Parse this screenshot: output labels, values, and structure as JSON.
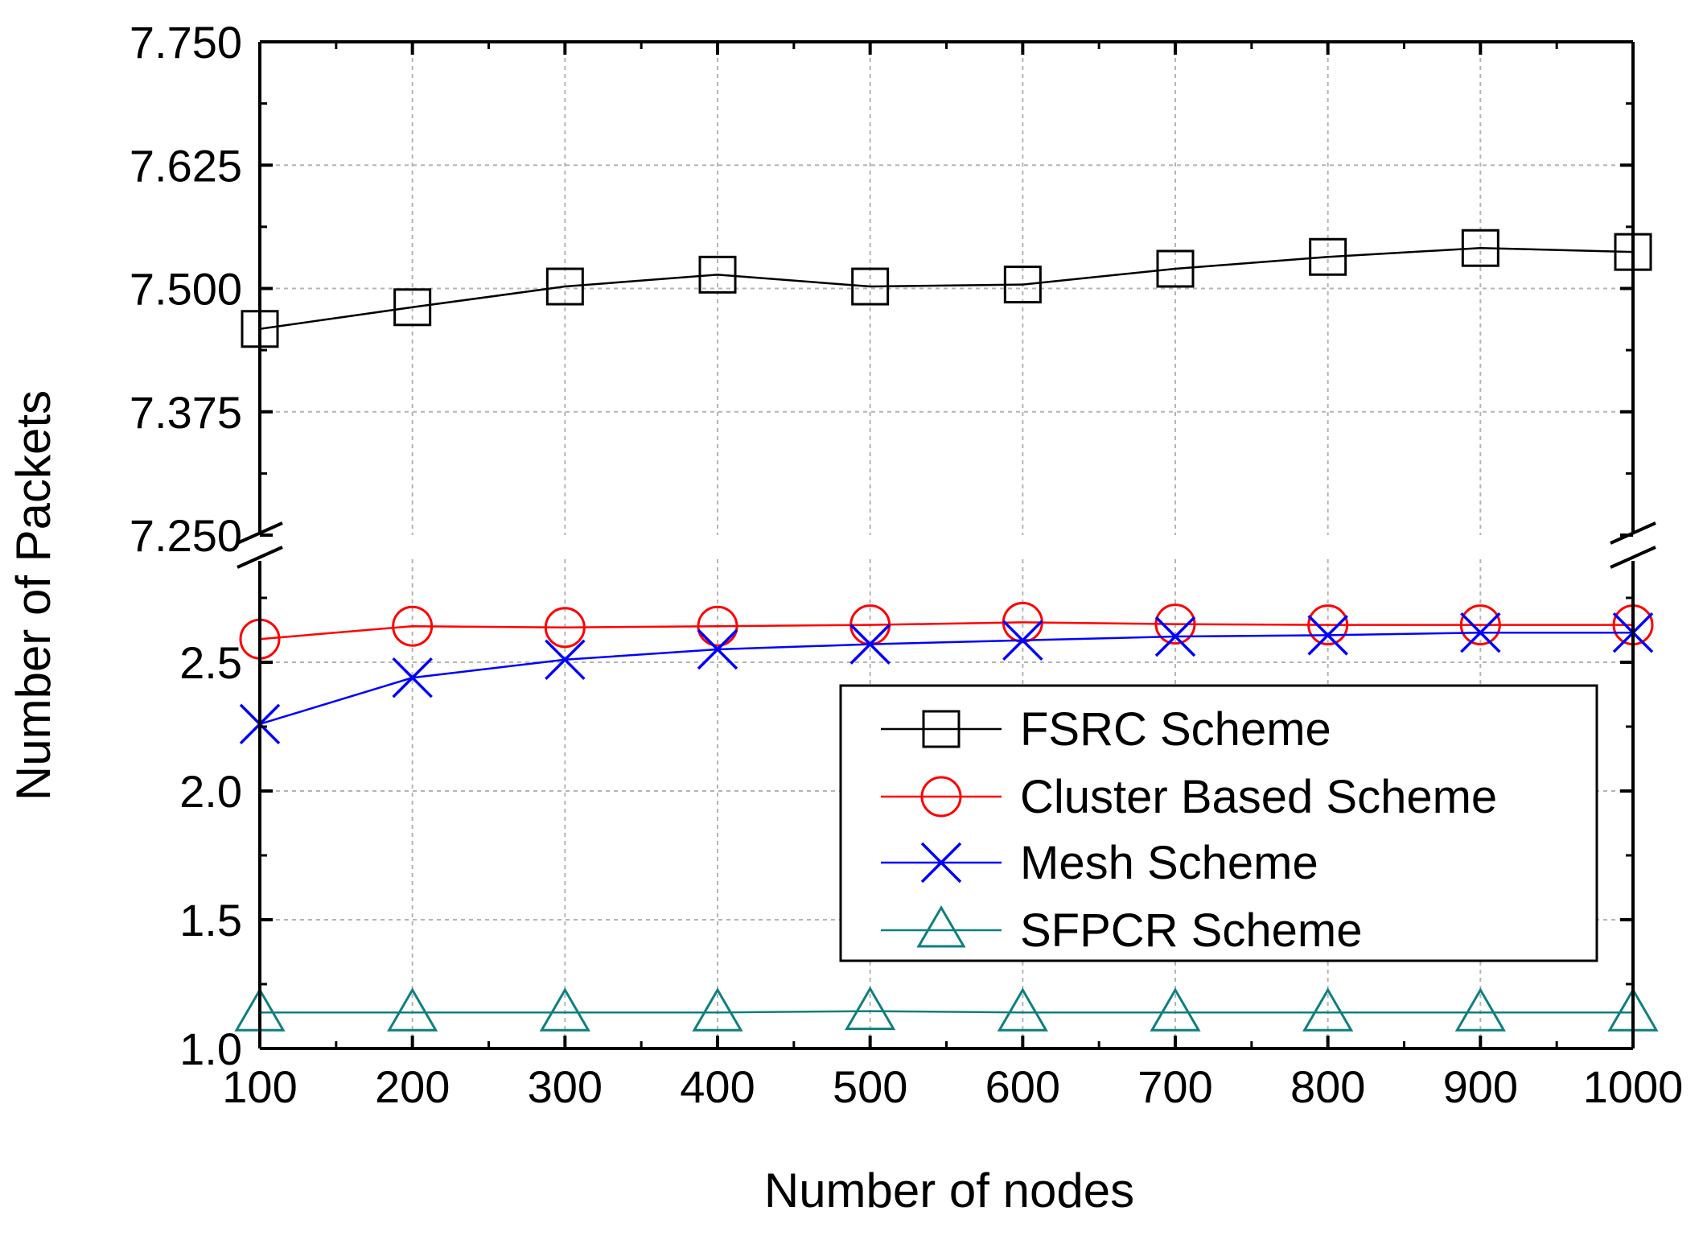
{
  "chart_data": {
    "type": "line",
    "xlabel": "Number of nodes",
    "ylabel": "Number of Packets",
    "x": [
      100,
      200,
      300,
      400,
      500,
      600,
      700,
      800,
      900,
      1000
    ],
    "xlim": [
      100,
      1000
    ],
    "xticks": [
      "100",
      "200",
      "300",
      "400",
      "500",
      "600",
      "700",
      "800",
      "900",
      "1000"
    ],
    "grid": true,
    "broken_y_axis": true,
    "y_upper": {
      "ylim": [
        7.25,
        7.75
      ],
      "ticks": [
        7.25,
        7.375,
        7.5,
        7.625,
        7.75
      ],
      "tick_labels": [
        "7.250",
        "7.375",
        "7.500",
        "7.625",
        "7.750"
      ]
    },
    "y_lower": {
      "ylim": [
        1.0,
        2.9
      ],
      "ticks": [
        1.0,
        1.5,
        2.0,
        2.5
      ],
      "tick_labels": [
        "1.0",
        "1.5",
        "2.0",
        "2.5"
      ]
    },
    "series": [
      {
        "name": "FSRC Scheme",
        "color": "#000000",
        "marker": "square",
        "segment": "upper",
        "values": [
          7.459,
          7.481,
          7.502,
          7.514,
          7.502,
          7.504,
          7.52,
          7.532,
          7.541,
          7.537
        ]
      },
      {
        "name": "Cluster Based Scheme",
        "color": "#ff0000",
        "marker": "circle",
        "segment": "lower",
        "values": [
          2.59,
          2.64,
          2.635,
          2.64,
          2.645,
          2.655,
          2.648,
          2.645,
          2.645,
          2.645
        ]
      },
      {
        "name": "Mesh Scheme",
        "color": "#0000ff",
        "marker": "x",
        "segment": "lower",
        "values": [
          2.26,
          2.44,
          2.51,
          2.55,
          2.57,
          2.585,
          2.6,
          2.605,
          2.615,
          2.615
        ]
      },
      {
        "name": "SFPCR Scheme",
        "color": "#0f7f7f",
        "marker": "triangle",
        "segment": "lower",
        "values": [
          1.14,
          1.14,
          1.14,
          1.14,
          1.145,
          1.14,
          1.14,
          1.14,
          1.14,
          1.14
        ]
      }
    ],
    "legend_position": "center-right"
  }
}
